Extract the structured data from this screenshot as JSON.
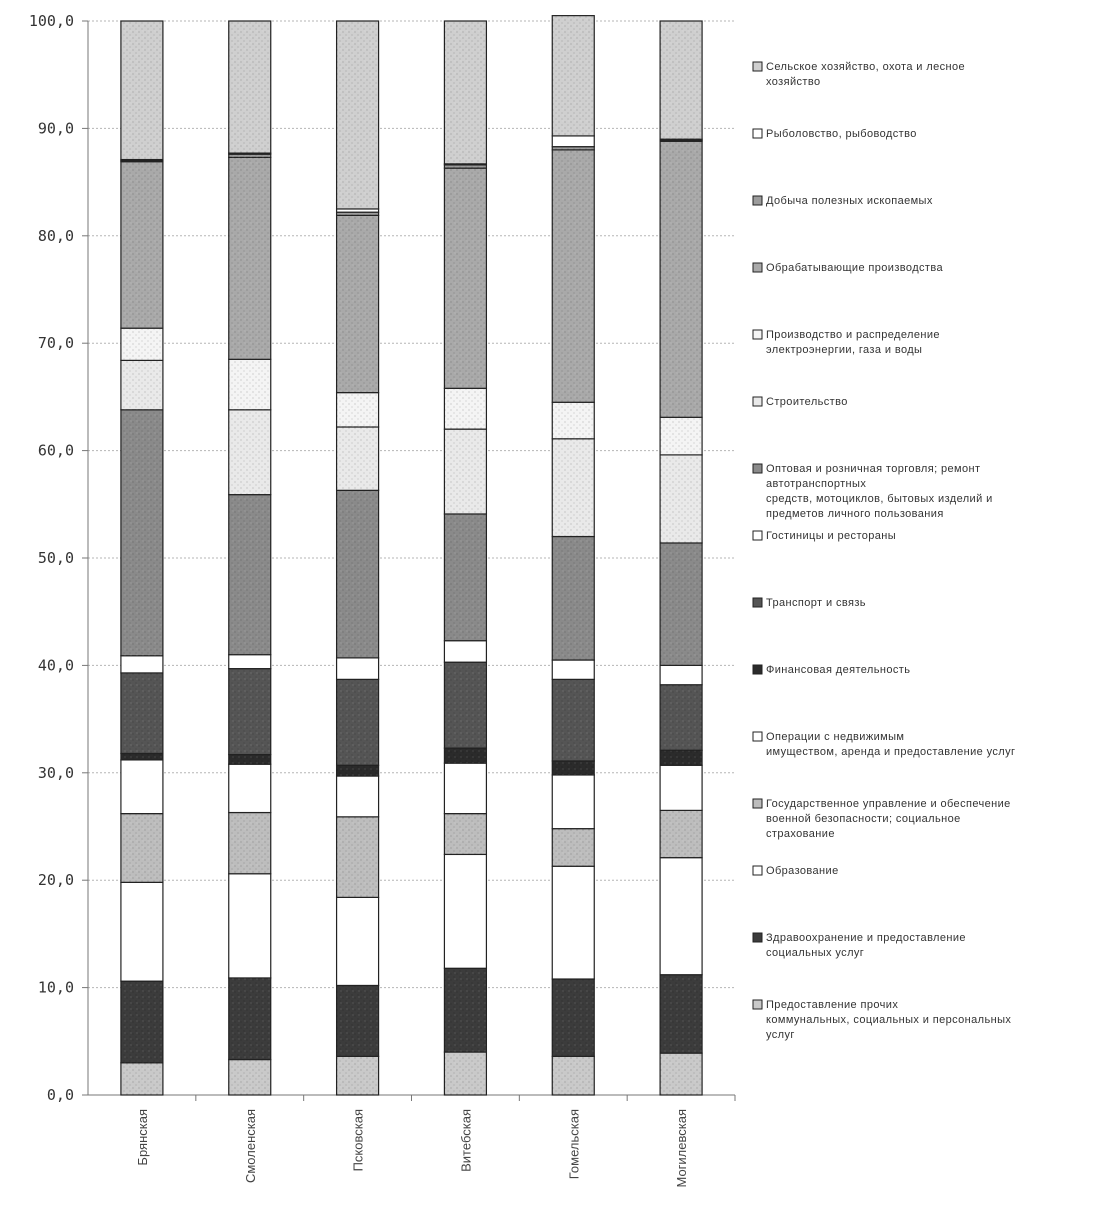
{
  "chart_data": {
    "type": "bar",
    "stacked": true,
    "title": "",
    "xlabel": "",
    "ylabel": "",
    "ylim": [
      0,
      100
    ],
    "yticks": [
      "0,0",
      "10,0",
      "20,0",
      "30,0",
      "40,0",
      "50,0",
      "60,0",
      "70,0",
      "80,0",
      "90,0",
      "100,0"
    ],
    "grid": true,
    "legend_position": "right",
    "categories": [
      "Брянская",
      "Смоленская",
      "Псковская",
      "Витебская",
      "Гомельская",
      "Могилевская"
    ],
    "series": [
      {
        "name": "Предоставление прочих коммунальных, социальных и персональных услуг",
        "legend_lines": [
          "Предоставление прочих",
          "коммунальных, социальных и персональных",
          "услуг"
        ],
        "fill": "#c9c9c9",
        "values": [
          3.0,
          3.3,
          3.6,
          4.0,
          3.6,
          3.9
        ]
      },
      {
        "name": "Здравоохранение и предоставление социальных услуг",
        "legend_lines": [
          "Здравоохранение и предоставление",
          "социальных услуг"
        ],
        "fill": "#3c3c3c",
        "values": [
          7.6,
          7.6,
          6.6,
          7.8,
          7.2,
          7.3
        ]
      },
      {
        "name": "Образование",
        "legend_lines": [
          "Образование"
        ],
        "fill": "#ffffff",
        "values": [
          9.2,
          9.7,
          8.2,
          10.6,
          10.5,
          10.9
        ]
      },
      {
        "name": "Государственное управление и обеспечение военной безопасности; социальное страхование",
        "legend_lines": [
          "Государственное управление и обеспечение",
          "военной безопасности; социальное",
          "страхование"
        ],
        "fill": "#bdbdbd",
        "values": [
          6.4,
          5.7,
          7.5,
          3.8,
          3.5,
          4.4
        ]
      },
      {
        "name": "Операции с недвижимым имуществом, аренда и предоставление услуг",
        "legend_lines": [
          "Операции с недвижимым",
          "имуществом, аренда и предоставление услуг"
        ],
        "fill": "#ffffff",
        "values": [
          5.0,
          4.5,
          3.8,
          4.7,
          5.0,
          4.2
        ]
      },
      {
        "name": "Финансовая деятельность",
        "legend_lines": [
          "Финансовая деятельность"
        ],
        "fill": "#2b2b2b",
        "values": [
          0.6,
          0.9,
          1.0,
          1.4,
          1.3,
          1.4
        ]
      },
      {
        "name": "Транспорт и связь",
        "legend_lines": [
          "Транспорт и связь"
        ],
        "fill": "#555555",
        "values": [
          7.5,
          8.0,
          8.0,
          8.0,
          7.6,
          6.1
        ]
      },
      {
        "name": "Гостиницы и рестораны",
        "legend_lines": [
          "Гостиницы и рестораны"
        ],
        "fill": "#ffffff",
        "values": [
          1.6,
          1.3,
          2.0,
          2.0,
          1.8,
          1.8
        ]
      },
      {
        "name": "Оптовая и розничная торговля; ремонт автотранспортных средств, мотоциклов, бытовых изделий и предметов личного пользования",
        "legend_lines": [
          "Оптовая и розничная торговля; ремонт",
          "автотранспортных",
          "средств, мотоциклов, бытовых изделий и",
          "предметов личного пользования"
        ],
        "fill": "#8a8a8a",
        "values": [
          22.9,
          14.9,
          15.6,
          11.8,
          11.5,
          11.4
        ]
      },
      {
        "name": "Строительство",
        "legend_lines": [
          "Строительство"
        ],
        "fill": "#e9e9e9",
        "values": [
          4.6,
          7.9,
          5.9,
          7.9,
          9.1,
          8.2
        ]
      },
      {
        "name": "Производство и распределение электроэнергии, газа и воды",
        "legend_lines": [
          "Производство и распределение",
          "электроэнергии, газа и воды"
        ],
        "fill": "#f4f4f4",
        "values": [
          3.0,
          4.7,
          3.2,
          3.8,
          3.4,
          3.5
        ]
      },
      {
        "name": "Обрабатывающие производства",
        "legend_lines": [
          "Обрабатывающие производства"
        ],
        "fill": "#a9a9a9",
        "values": [
          15.5,
          18.8,
          16.5,
          20.5,
          23.5,
          25.7
        ]
      },
      {
        "name": "Добыча полезных ископаемых",
        "legend_lines": [
          "Добыча полезных ископаемых"
        ],
        "fill": "#9c9c9c",
        "values": [
          0.1,
          0.3,
          0.3,
          0.3,
          0.3,
          0.1
        ]
      },
      {
        "name": "Рыболовство, рыбоводство",
        "legend_lines": [
          "Рыболовство, рыбоводство"
        ],
        "fill": "#ffffff",
        "values": [
          0.1,
          0.1,
          0.3,
          0.1,
          1.0,
          0.1
        ]
      },
      {
        "name": "Сельское хозяйство, охота и лесное хозяйство",
        "legend_lines": [
          "Сельское хозяйство, охота и лесное",
          "хозяйство"
        ],
        "fill": "#cfcfcf",
        "values": [
          12.9,
          12.3,
          17.5,
          13.3,
          11.2,
          11.0
        ]
      }
    ]
  }
}
